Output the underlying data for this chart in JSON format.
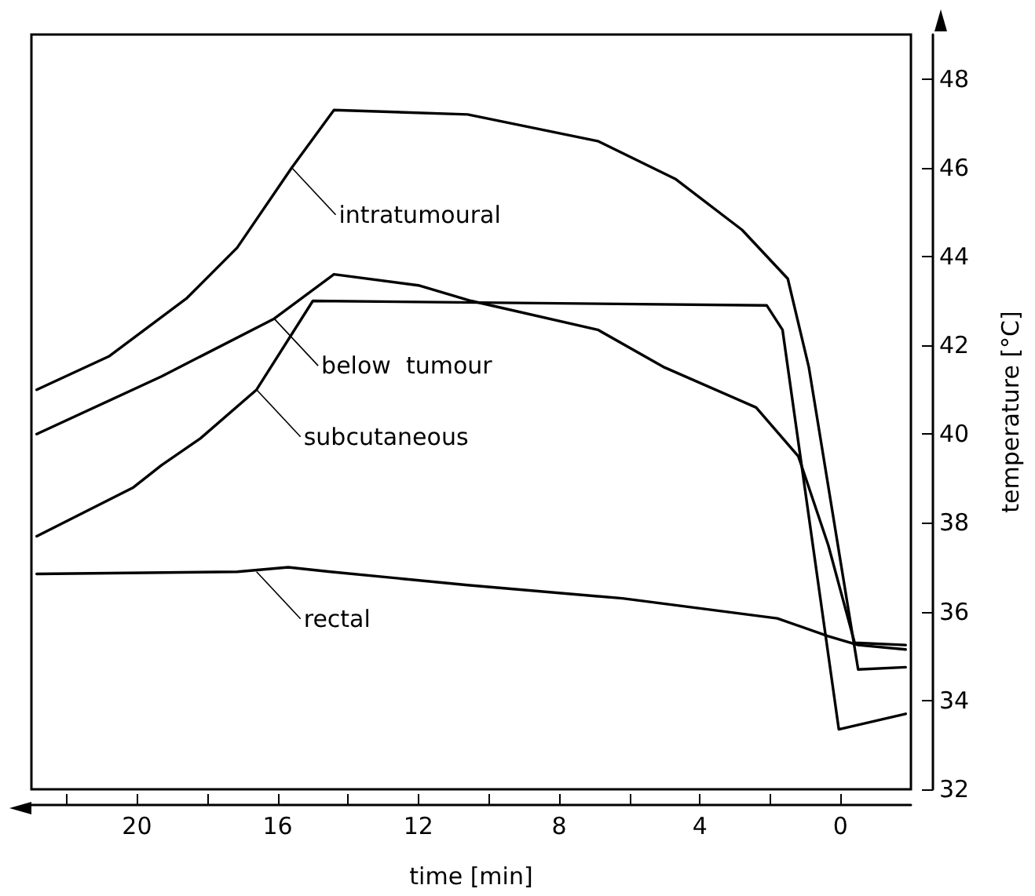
{
  "chart_data": {
    "type": "line",
    "xlabel": "time [min]",
    "ylabel": "temperature [°C]",
    "xlim": [
      23,
      -2
    ],
    "ylim": [
      32,
      49
    ],
    "xticks": [
      {
        "value": 22,
        "label": null
      },
      20,
      {
        "value": 18,
        "label": null
      },
      16,
      {
        "value": 14,
        "label": null
      },
      12,
      {
        "value": 10,
        "label": null
      },
      8,
      {
        "value": 6,
        "label": null
      },
      4,
      {
        "value": 2,
        "label": null
      },
      0
    ],
    "yticks": [
      32,
      34,
      36,
      38,
      40,
      42,
      44,
      46,
      48
    ],
    "grid": false,
    "marker": "none",
    "line_style": "solid",
    "series": [
      {
        "color": "#000000",
        "x": [
          22.85,
          20.8,
          18.6,
          17.15,
          15.6,
          14.4,
          10.6,
          6.9,
          4.7,
          2.8,
          1.5,
          0.9,
          -0.5,
          -1.85
        ],
        "values": [
          41.0,
          41.75,
          43.05,
          44.2,
          46.0,
          47.3,
          47.2,
          46.6,
          45.75,
          44.6,
          43.5,
          41.5,
          34.7,
          34.75
        ]
      },
      {
        "color": "#000000",
        "x": [
          22.85,
          19.3,
          16.1,
          14.4,
          12.0,
          10.5,
          6.9,
          5.0,
          2.4,
          1.2,
          0.35,
          -0.4,
          -1.85
        ],
        "values": [
          40.0,
          41.3,
          42.6,
          43.6,
          43.35,
          43.0,
          42.35,
          41.5,
          40.6,
          39.5,
          37.5,
          35.3,
          35.25
        ]
      },
      {
        "color": "#000000",
        "x": [
          22.85,
          20.1,
          19.3,
          18.2,
          16.6,
          15.0,
          2.1,
          1.65,
          0.05,
          -1.85
        ],
        "values": [
          37.7,
          38.8,
          39.3,
          39.9,
          41.0,
          43.0,
          42.9,
          42.35,
          33.35,
          33.7
        ]
      },
      {
        "color": "#000000",
        "x": [
          22.85,
          17.15,
          15.7,
          14.5,
          10.6,
          6.2,
          1.8,
          0.35,
          -0.5,
          -1.85
        ],
        "values": [
          36.85,
          36.9,
          37.0,
          36.9,
          36.6,
          36.3,
          35.85,
          35.45,
          35.25,
          35.15
        ]
      }
    ],
    "annotations": [
      {
        "text": "intratumoural",
        "x": 15.6,
        "y": 46.0
      },
      {
        "text": "below  tumour",
        "x": 16.1,
        "y": 42.6
      },
      {
        "text": "subcutaneous",
        "x": 16.6,
        "y": 41.0
      },
      {
        "text": "rectal",
        "x": 16.6,
        "y": 36.9
      }
    ]
  }
}
